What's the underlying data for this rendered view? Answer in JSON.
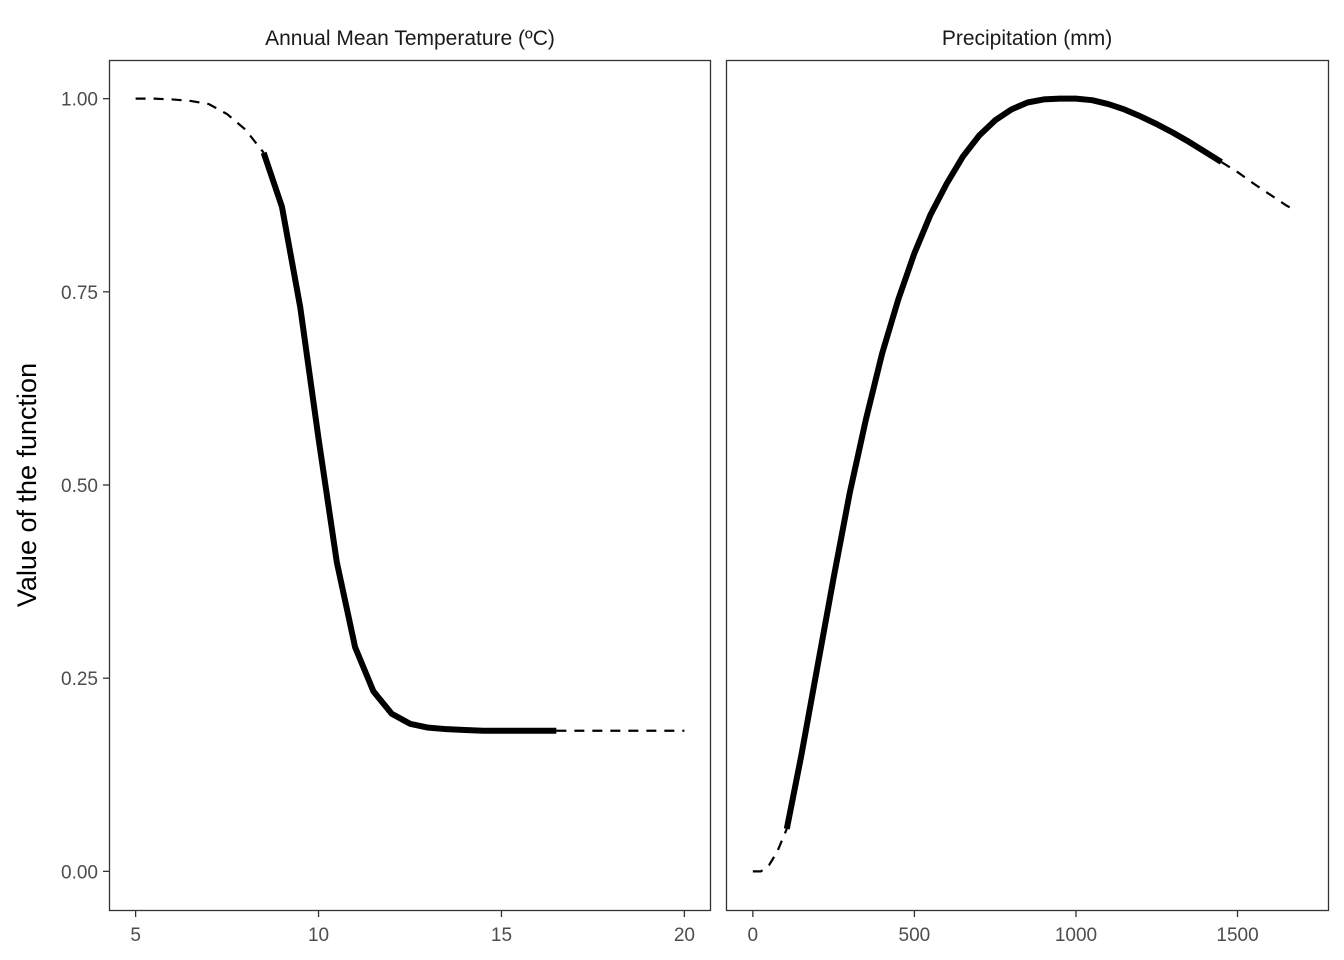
{
  "chart_data": [
    {
      "type": "line",
      "title": "Annual Mean Temperature (ºC)",
      "xlabel": "",
      "ylabel": "Value of the function",
      "xlim": [
        4.3,
        20.7
      ],
      "ylim": [
        -0.05,
        1.05
      ],
      "xticks": [
        5,
        10,
        15,
        20
      ],
      "yticks": [
        0.0,
        0.25,
        0.5,
        0.75,
        1.0
      ],
      "ytick_labels": [
        "0.00",
        "0.25",
        "0.50",
        "0.75",
        "1.00"
      ],
      "grid": false,
      "series": [
        {
          "style": "dashed",
          "x": [
            5,
            5.5,
            6,
            6.5,
            7,
            7.5,
            8,
            8.5
          ],
          "y": [
            1.0,
            1.0,
            0.999,
            0.997,
            0.993,
            0.98,
            0.96,
            0.93
          ]
        },
        {
          "style": "solid",
          "x": [
            8.5,
            9,
            9.5,
            10,
            10.5,
            11,
            11.5,
            12,
            12.5,
            13,
            13.5,
            14,
            14.5,
            15,
            15.5,
            16,
            16.5
          ],
          "y": [
            0.93,
            0.86,
            0.73,
            0.56,
            0.4,
            0.29,
            0.233,
            0.204,
            0.191,
            0.186,
            0.184,
            0.183,
            0.182,
            0.182,
            0.182,
            0.182,
            0.182
          ]
        },
        {
          "style": "dashed",
          "x": [
            16.5,
            17.5,
            18.5,
            19.5,
            20
          ],
          "y": [
            0.182,
            0.182,
            0.182,
            0.182,
            0.182
          ]
        }
      ]
    },
    {
      "type": "line",
      "title": "Precipitation (mm)",
      "xlabel": "",
      "ylabel": "",
      "xlim": [
        -80,
        1780
      ],
      "ylim": [
        -0.05,
        1.05
      ],
      "xticks": [
        0,
        500,
        1000,
        1500
      ],
      "grid": false,
      "series": [
        {
          "style": "dashed",
          "x": [
            0,
            25,
            50,
            75,
            105
          ],
          "y": [
            0.0,
            0.0,
            0.008,
            0.025,
            0.055
          ]
        },
        {
          "style": "solid",
          "x": [
            105,
            150,
            200,
            250,
            300,
            350,
            400,
            450,
            500,
            550,
            600,
            650,
            700,
            750,
            800,
            850,
            900,
            950,
            1000,
            1050,
            1100,
            1150,
            1200,
            1250,
            1300,
            1350,
            1400,
            1450
          ],
          "y": [
            0.055,
            0.15,
            0.265,
            0.38,
            0.49,
            0.585,
            0.67,
            0.74,
            0.8,
            0.85,
            0.89,
            0.925,
            0.952,
            0.972,
            0.986,
            0.995,
            0.999,
            1.0,
            1.0,
            0.998,
            0.993,
            0.986,
            0.977,
            0.967,
            0.956,
            0.944,
            0.931,
            0.918
          ]
        },
        {
          "style": "dashed",
          "x": [
            1450,
            1500,
            1550,
            1600,
            1650,
            1680
          ],
          "y": [
            0.918,
            0.905,
            0.89,
            0.876,
            0.862,
            0.855
          ]
        }
      ]
    }
  ]
}
